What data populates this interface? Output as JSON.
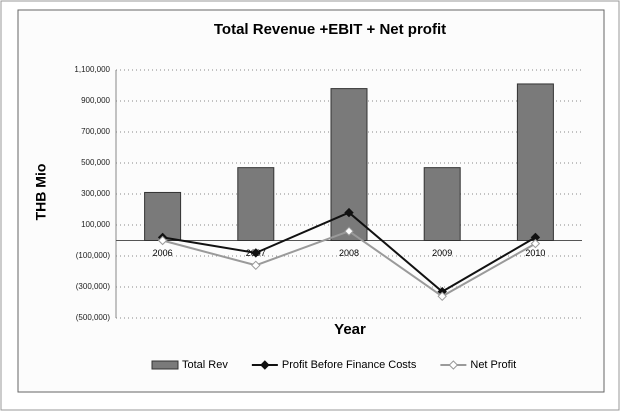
{
  "chart_data": {
    "type": "bar-line",
    "title": "Total Revenue +EBIT + Net profit",
    "y_label": "THB Mio",
    "x_label": "Year",
    "categories": [
      "2006",
      "2007",
      "2008",
      "2009",
      "2010"
    ],
    "series": [
      {
        "name": "Total Rev",
        "type": "bar",
        "color": "#7a7a7a",
        "values": [
          310000,
          470000,
          980000,
          470000,
          1010000
        ]
      },
      {
        "name": "Profit Before Finance Costs",
        "type": "line",
        "color": "#111111",
        "values": [
          20000,
          -80000,
          180000,
          -330000,
          20000
        ]
      },
      {
        "name": "Net Profit",
        "type": "line",
        "color": "#9a9a9a",
        "values": [
          0,
          -160000,
          60000,
          -360000,
          -20000
        ]
      }
    ],
    "ylim": [
      -500000,
      1100000
    ],
    "yticks": [
      {
        "value": 1100000,
        "label": "1,100,000"
      },
      {
        "value": 900000,
        "label": "900,000"
      },
      {
        "value": 700000,
        "label": "700,000"
      },
      {
        "value": 500000,
        "label": "500,000"
      },
      {
        "value": 300000,
        "label": "300,000"
      },
      {
        "value": 100000,
        "label": "100,000"
      },
      {
        "value": -100000,
        "label": "(100,000)"
      },
      {
        "value": -300000,
        "label": "(300,000)"
      },
      {
        "value": -500000,
        "label": "(500,000)"
      }
    ],
    "grid": true
  }
}
